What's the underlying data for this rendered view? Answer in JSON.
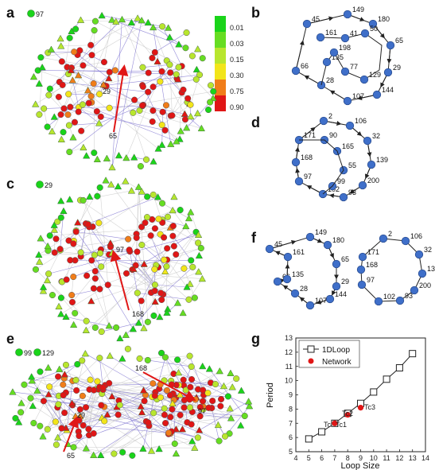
{
  "panels": {
    "a": "a",
    "b": "b",
    "c": "c",
    "d": "d",
    "e": "e",
    "f": "f",
    "g": "g"
  },
  "colorbar": {
    "ticks": [
      "0.01",
      "0.03",
      "0.15",
      "0.30",
      "0.75",
      "0.90"
    ],
    "colors": [
      "#1ad41a",
      "#66dd22",
      "#b8e62e",
      "#f2e51a",
      "#f07d1a",
      "#e01616"
    ]
  },
  "network_a": {
    "isolated": "97",
    "labels": [
      "29",
      "65"
    ]
  },
  "network_c": {
    "isolated": "29",
    "labels": [
      "97",
      "168"
    ]
  },
  "network_e": {
    "isolated": [
      "99",
      "129"
    ],
    "labels": [
      "168",
      "29",
      "97",
      "65"
    ]
  },
  "loop_b": {
    "outer": [
      "45",
      "149",
      "180",
      "65",
      "29",
      "144",
      "107",
      "28",
      "66"
    ],
    "inner": [
      "161",
      "41",
      "50",
      "135",
      "198",
      "77",
      "129"
    ]
  },
  "loop_d": [
    "2",
    "106",
    "32",
    "139",
    "200",
    "93",
    "102",
    "97",
    "168",
    "171",
    "90",
    "165",
    "55",
    "99"
  ],
  "loop_f1": [
    "45",
    "149",
    "180",
    "65",
    "29",
    "144",
    "107",
    "28",
    "66",
    "135",
    "161"
  ],
  "loop_f2": [
    "2",
    "106",
    "32",
    "139",
    "200",
    "93",
    "102",
    "97",
    "168",
    "171"
  ],
  "chart_data": {
    "type": "scatter",
    "title": "",
    "xlabel": "Loop Size",
    "ylabel": "Period",
    "xlim": [
      4,
      14
    ],
    "ylim": [
      5,
      13
    ],
    "xticks": [
      4,
      5,
      6,
      7,
      8,
      9,
      10,
      11,
      12,
      13,
      14
    ],
    "yticks": [
      5,
      6,
      7,
      8,
      9,
      10,
      11,
      12,
      13
    ],
    "legend_position": "top-left",
    "series": [
      {
        "name": "1DLoop",
        "marker": "open-square-line",
        "x": [
          5,
          6,
          7,
          8,
          9,
          10,
          11,
          12,
          13
        ],
        "y": [
          5.9,
          6.4,
          7.0,
          7.7,
          8.4,
          9.2,
          10.1,
          10.9,
          11.9
        ]
      },
      {
        "name": "Network",
        "marker": "red-dot",
        "x": [
          7,
          8,
          9
        ],
        "y": [
          7.0,
          7.6,
          8.1
        ]
      }
    ],
    "annotations": [
      "Tc",
      "Tc1",
      "Tc2",
      "Tc3"
    ]
  }
}
